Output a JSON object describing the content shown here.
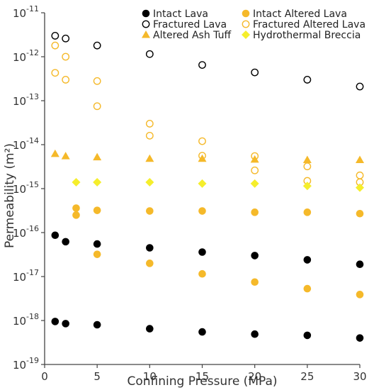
{
  "chart_data": {
    "type": "scatter",
    "xlabel": "Confining Pressure (MPa)",
    "ylabel": "Permeability (m²)",
    "xlim": [
      0,
      30
    ],
    "xticks": [
      0,
      5,
      10,
      15,
      20,
      25,
      30
    ],
    "ylim": [
      1e-19,
      1e-11
    ],
    "yscale": "log",
    "yticks": [
      {
        "value": 1e-19,
        "base": "10",
        "exp": "-19"
      },
      {
        "value": 1e-18,
        "base": "10",
        "exp": "-18"
      },
      {
        "value": 1e-17,
        "base": "10",
        "exp": "-17"
      },
      {
        "value": 1e-16,
        "base": "10",
        "exp": "-16"
      },
      {
        "value": 1e-15,
        "base": "10",
        "exp": "-15"
      },
      {
        "value": 1e-14,
        "base": "10",
        "exp": "-14"
      },
      {
        "value": 1e-13,
        "base": "10",
        "exp": "-13"
      },
      {
        "value": 1e-12,
        "base": "10",
        "exp": "-12"
      },
      {
        "value": 1e-11,
        "base": "10",
        "exp": "-11"
      }
    ],
    "grid": false,
    "legend_position": "top-right",
    "series": [
      {
        "name": "Intact Lava",
        "marker": "filled-circle",
        "color": "#000000",
        "points": [
          [
            1,
            8.7e-17
          ],
          [
            2,
            6.2e-17
          ],
          [
            5,
            5.5e-17
          ],
          [
            10,
            4.5e-17
          ],
          [
            15,
            3.6e-17
          ],
          [
            20,
            3e-17
          ],
          [
            25,
            2.4e-17
          ],
          [
            30,
            1.9e-17
          ],
          [
            1,
            9.5e-19
          ],
          [
            2,
            8.5e-19
          ],
          [
            5,
            8e-19
          ],
          [
            10,
            6.5e-19
          ],
          [
            15,
            5.5e-19
          ],
          [
            20,
            4.9e-19
          ],
          [
            25,
            4.6e-19
          ],
          [
            30,
            4e-19
          ]
        ]
      },
      {
        "name": "Intact Altered Lava",
        "marker": "filled-circle",
        "color": "#f5b92a",
        "points": [
          [
            3,
            3.6e-16
          ],
          [
            3,
            2.5e-16
          ],
          [
            5,
            3.2e-16
          ],
          [
            10,
            3.1e-16
          ],
          [
            15,
            3.1e-16
          ],
          [
            20,
            2.9e-16
          ],
          [
            25,
            2.9e-16
          ],
          [
            30,
            2.7e-16
          ],
          [
            5,
            3.2e-17
          ],
          [
            10,
            2e-17
          ],
          [
            15,
            1.15e-17
          ],
          [
            20,
            7.5e-18
          ],
          [
            25,
            5.3e-18
          ],
          [
            30,
            3.9e-18
          ]
        ]
      },
      {
        "name": "Fractured Lava",
        "marker": "open-circle",
        "color": "#000000",
        "points": [
          [
            1,
            3e-12
          ],
          [
            2,
            2.6e-12
          ],
          [
            5,
            1.8e-12
          ],
          [
            10,
            1.15e-12
          ],
          [
            15,
            6.5e-13
          ],
          [
            20,
            4.4e-13
          ],
          [
            25,
            3e-13
          ],
          [
            30,
            2.1e-13
          ]
        ]
      },
      {
        "name": "Fractured Altered Lava",
        "marker": "open-circle",
        "color": "#f5b92a",
        "points": [
          [
            1,
            1.8e-12
          ],
          [
            2,
            1e-12
          ],
          [
            1,
            4.3e-13
          ],
          [
            2,
            3e-13
          ],
          [
            5,
            2.8e-13
          ],
          [
            5,
            7.5e-14
          ],
          [
            10,
            3e-14
          ],
          [
            10,
            1.6e-14
          ],
          [
            15,
            1.2e-14
          ],
          [
            15,
            5.6e-15
          ],
          [
            20,
            5.5e-15
          ],
          [
            20,
            2.6e-15
          ],
          [
            25,
            3.2e-15
          ],
          [
            25,
            1.5e-15
          ],
          [
            30,
            2e-15
          ],
          [
            30,
            1.4e-15
          ]
        ]
      },
      {
        "name": "Altered Ash Tuff",
        "marker": "filled-triangle",
        "color": "#f5b92a",
        "points": [
          [
            1,
            6.2e-15
          ],
          [
            2,
            5.5e-15
          ],
          [
            5,
            5.2e-15
          ],
          [
            10,
            4.8e-15
          ],
          [
            15,
            4.8e-15
          ],
          [
            20,
            4.6e-15
          ],
          [
            25,
            4.5e-15
          ],
          [
            30,
            4.5e-15
          ]
        ]
      },
      {
        "name": "Hydrothermal Breccia",
        "marker": "filled-diamond",
        "color": "#f5ee2c",
        "points": [
          [
            3,
            1.4e-15
          ],
          [
            5,
            1.4e-15
          ],
          [
            10,
            1.4e-15
          ],
          [
            15,
            1.3e-15
          ],
          [
            20,
            1.3e-15
          ],
          [
            25,
            1.15e-15
          ],
          [
            30,
            1.05e-15
          ]
        ]
      }
    ]
  }
}
